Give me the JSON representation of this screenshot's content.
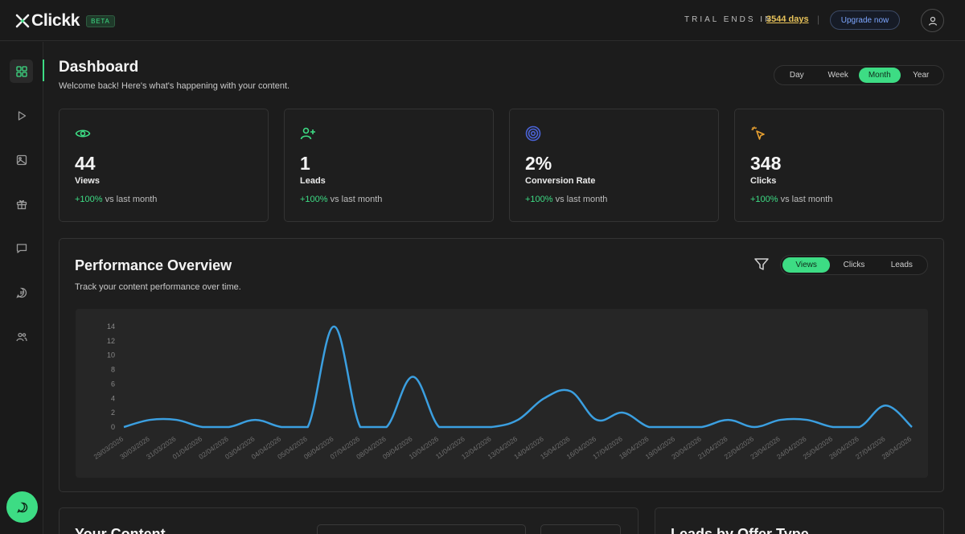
{
  "brand": {
    "name": "Clickk",
    "badge": "BETA",
    "accent": "#3ddc84"
  },
  "topbar": {
    "trial_label": "TRIAL ENDS IN",
    "trial_days": "3544 days",
    "separator": "|",
    "upgrade_label": "Upgrade now"
  },
  "sidebar": {
    "items": [
      {
        "icon": "dashboard-grid-icon",
        "active": true
      },
      {
        "icon": "play-icon",
        "active": false
      },
      {
        "icon": "image-icon",
        "active": false
      },
      {
        "icon": "gift-icon",
        "active": false
      },
      {
        "icon": "message-square-icon",
        "active": false
      },
      {
        "icon": "message-circle-icon",
        "active": false
      },
      {
        "icon": "users-icon",
        "active": false
      }
    ],
    "fab_icon": "chat-icon"
  },
  "header": {
    "title": "Dashboard",
    "subtitle": "Welcome back! Here's what's happening with your content.",
    "ranges": [
      "Day",
      "Week",
      "Month",
      "Year"
    ],
    "active_range": "Month"
  },
  "stats": [
    {
      "icon": "eye-icon",
      "color": "#3ddc84",
      "value": "44",
      "label": "Views",
      "delta": "+100%",
      "delta_suffix": " vs last month"
    },
    {
      "icon": "user-plus-icon",
      "color": "#3ddc84",
      "value": "1",
      "label": "Leads",
      "delta": "+100%",
      "delta_suffix": " vs last month"
    },
    {
      "icon": "target-icon",
      "color": "#4a63d6",
      "value": "2%",
      "label": "Conversion Rate",
      "delta": "+100%",
      "delta_suffix": " vs last month"
    },
    {
      "icon": "cursor-click-icon",
      "color": "#e8a030",
      "value": "348",
      "label": "Clicks",
      "delta": "+100%",
      "delta_suffix": " vs last month"
    }
  ],
  "performance": {
    "title": "Performance Overview",
    "subtitle": "Track your content performance over time.",
    "metrics": [
      "Views",
      "Clicks",
      "Leads"
    ],
    "active_metric": "Views"
  },
  "chart_data": {
    "type": "line",
    "title": "",
    "xlabel": "",
    "ylabel": "",
    "ylim": [
      0,
      14
    ],
    "yticks": [
      0,
      2,
      4,
      6,
      8,
      10,
      12,
      14
    ],
    "grid": false,
    "color": "#3b9fe0",
    "x": [
      "29/03/2026",
      "30/03/2026",
      "31/03/2026",
      "01/04/2026",
      "02/04/2026",
      "03/04/2026",
      "04/04/2026",
      "05/04/2026",
      "06/04/2026",
      "07/04/2026",
      "08/04/2026",
      "09/04/2026",
      "10/04/2026",
      "11/04/2026",
      "12/04/2026",
      "13/04/2026",
      "14/04/2026",
      "15/04/2026",
      "16/04/2026",
      "17/04/2026",
      "18/04/2026",
      "19/04/2026",
      "20/04/2026",
      "21/04/2026",
      "22/04/2026",
      "23/04/2026",
      "24/04/2026",
      "25/04/2026",
      "26/04/2026",
      "27/04/2026",
      "28/04/2026"
    ],
    "series": [
      {
        "values": [
          0,
          1,
          1,
          0,
          0,
          1,
          0,
          0,
          14,
          0,
          0,
          7,
          0,
          0,
          0,
          1,
          4,
          5,
          1,
          2,
          0,
          0,
          0,
          1,
          0,
          1,
          1,
          0,
          0,
          3,
          0
        ]
      }
    ]
  },
  "bottom": {
    "content_title": "Your Content",
    "leads_title": "Leads by Offer Type"
  }
}
